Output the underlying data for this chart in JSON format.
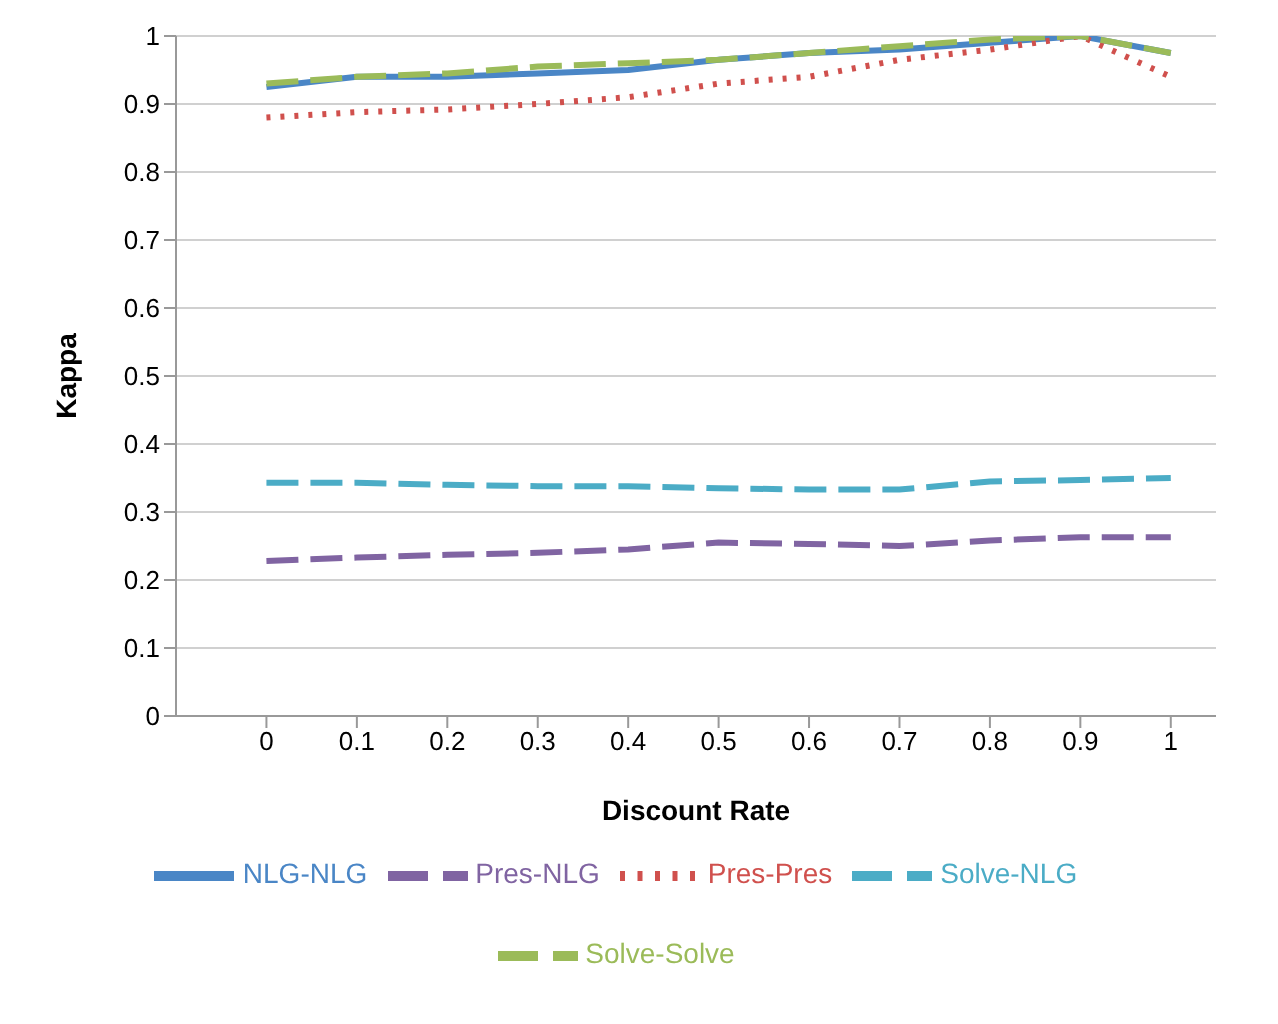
{
  "chart_data": {
    "type": "line",
    "xlabel": "Discount Rate",
    "ylabel": "Kappa",
    "x": [
      0,
      0.1,
      0.2,
      0.3,
      0.4,
      0.5,
      0.6,
      0.7,
      0.8,
      0.9,
      1
    ],
    "xlim": [
      -0.1,
      1.05
    ],
    "xticks": [
      0,
      0.1,
      0.2,
      0.3,
      0.4,
      0.5,
      0.6,
      0.7,
      0.8,
      0.9,
      1
    ],
    "ylim": [
      0,
      1
    ],
    "yticks": [
      0,
      0.1,
      0.2,
      0.3,
      0.4,
      0.5,
      0.6,
      0.7,
      0.8,
      0.9,
      1
    ],
    "grid": "y",
    "legend": "bottom",
    "marker": "none",
    "series": [
      {
        "name": "NLG-NLG",
        "color": "#4a86c6",
        "line_style": "solid",
        "values": [
          0.925,
          0.94,
          0.94,
          0.945,
          0.95,
          0.965,
          0.975,
          0.98,
          0.99,
          1.0,
          0.975
        ]
      },
      {
        "name": "Pres-Pres",
        "color": "#d0504d",
        "line_style": "dotted",
        "values": [
          0.88,
          0.888,
          0.892,
          0.9,
          0.91,
          0.93,
          0.94,
          0.965,
          0.98,
          1.0,
          0.94
        ]
      },
      {
        "name": "Solve-Solve",
        "color": "#9bbb59",
        "line_style": "dashed",
        "values": [
          0.93,
          0.94,
          0.945,
          0.955,
          0.96,
          0.965,
          0.975,
          0.985,
          0.995,
          1.0,
          0.975
        ]
      },
      {
        "name": "Pres-NLG",
        "color": "#8064a2",
        "line_style": "dashed",
        "values": [
          0.228,
          0.233,
          0.237,
          0.24,
          0.245,
          0.255,
          0.253,
          0.25,
          0.258,
          0.263,
          0.263
        ]
      },
      {
        "name": "Solve-NLG",
        "color": "#4bacc6",
        "line_style": "dashed",
        "values": [
          0.343,
          0.343,
          0.34,
          0.338,
          0.338,
          0.335,
          0.333,
          0.333,
          0.345,
          0.347,
          0.35
        ]
      }
    ]
  }
}
